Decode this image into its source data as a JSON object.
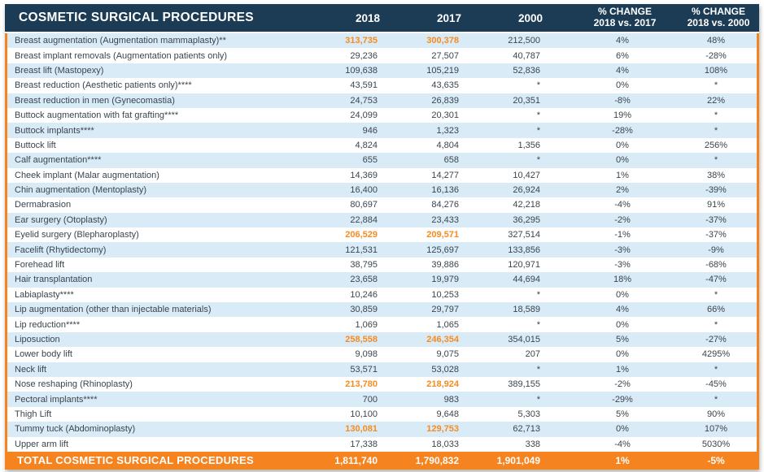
{
  "header": {
    "title": "COSMETIC SURGICAL PROCEDURES",
    "col_2018": "2018",
    "col_2017": "2017",
    "col_2000": "2000",
    "col_pct_2017_line1": "% CHANGE",
    "col_pct_2017_line2": "2018 vs. 2017",
    "col_pct_2000_line1": "% CHANGE",
    "col_pct_2000_line2": "2018 vs. 2000"
  },
  "colors": {
    "navy": "#1C3C55",
    "orange": "#F5831F",
    "orange_text": "#F68B1F",
    "stripe_blue": "#D9EBF7",
    "row_text": "#3A454E"
  },
  "chart_data": {
    "type": "table",
    "title": "COSMETIC SURGICAL PROCEDURES",
    "columns": [
      "Procedure",
      "2018",
      "2017",
      "2000",
      "% CHANGE 2018 vs. 2017",
      "% CHANGE 2018 vs. 2000"
    ],
    "rows": [
      {
        "procedure": "Breast augmentation (Augmentation mammaplasty)**",
        "y2018": "313,735",
        "y2017": "300,378",
        "y2000": "212,500",
        "pct_2017": "4%",
        "pct_2000": "48%",
        "highlight": true
      },
      {
        "procedure": "Breast implant removals (Augmentation patients only)",
        "y2018": "29,236",
        "y2017": "27,507",
        "y2000": "40,787",
        "pct_2017": "6%",
        "pct_2000": "-28%",
        "highlight": false
      },
      {
        "procedure": "Breast lift (Mastopexy)",
        "y2018": "109,638",
        "y2017": "105,219",
        "y2000": "52,836",
        "pct_2017": "4%",
        "pct_2000": "108%",
        "highlight": false
      },
      {
        "procedure": "Breast reduction (Aesthetic patients only)****",
        "y2018": "43,591",
        "y2017": "43,635",
        "y2000": "*",
        "pct_2017": "0%",
        "pct_2000": "*",
        "highlight": false
      },
      {
        "procedure": "Breast reduction in men (Gynecomastia)",
        "y2018": "24,753",
        "y2017": "26,839",
        "y2000": "20,351",
        "pct_2017": "-8%",
        "pct_2000": "22%",
        "highlight": false
      },
      {
        "procedure": "Buttock augmentation with fat grafting****",
        "y2018": "24,099",
        "y2017": "20,301",
        "y2000": "*",
        "pct_2017": "19%",
        "pct_2000": "*",
        "highlight": false
      },
      {
        "procedure": "Buttock implants****",
        "y2018": "946",
        "y2017": "1,323",
        "y2000": "*",
        "pct_2017": "-28%",
        "pct_2000": "*",
        "highlight": false
      },
      {
        "procedure": "Buttock lift",
        "y2018": "4,824",
        "y2017": "4,804",
        "y2000": "1,356",
        "pct_2017": "0%",
        "pct_2000": "256%",
        "highlight": false
      },
      {
        "procedure": "Calf augmentation****",
        "y2018": "655",
        "y2017": "658",
        "y2000": "*",
        "pct_2017": "0%",
        "pct_2000": "*",
        "highlight": false
      },
      {
        "procedure": "Cheek implant (Malar augmentation)",
        "y2018": "14,369",
        "y2017": "14,277",
        "y2000": "10,427",
        "pct_2017": "1%",
        "pct_2000": "38%",
        "highlight": false
      },
      {
        "procedure": "Chin augmentation (Mentoplasty)",
        "y2018": "16,400",
        "y2017": "16,136",
        "y2000": "26,924",
        "pct_2017": "2%",
        "pct_2000": "-39%",
        "highlight": false
      },
      {
        "procedure": "Dermabrasion",
        "y2018": "80,697",
        "y2017": "84,276",
        "y2000": "42,218",
        "pct_2017": "-4%",
        "pct_2000": "91%",
        "highlight": false
      },
      {
        "procedure": "Ear surgery (Otoplasty)",
        "y2018": "22,884",
        "y2017": "23,433",
        "y2000": "36,295",
        "pct_2017": "-2%",
        "pct_2000": "-37%",
        "highlight": false
      },
      {
        "procedure": "Eyelid surgery (Blepharoplasty)",
        "y2018": "206,529",
        "y2017": "209,571",
        "y2000": "327,514",
        "pct_2017": "-1%",
        "pct_2000": "-37%",
        "highlight": true
      },
      {
        "procedure": "Facelift (Rhytidectomy)",
        "y2018": "121,531",
        "y2017": "125,697",
        "y2000": "133,856",
        "pct_2017": "-3%",
        "pct_2000": "-9%",
        "highlight": false
      },
      {
        "procedure": "Forehead lift",
        "y2018": "38,795",
        "y2017": "39,886",
        "y2000": "120,971",
        "pct_2017": "-3%",
        "pct_2000": "-68%",
        "highlight": false
      },
      {
        "procedure": "Hair transplantation",
        "y2018": "23,658",
        "y2017": "19,979",
        "y2000": "44,694",
        "pct_2017": "18%",
        "pct_2000": "-47%",
        "highlight": false
      },
      {
        "procedure": "Labiaplasty****",
        "y2018": "10,246",
        "y2017": "10,253",
        "y2000": "*",
        "pct_2017": "0%",
        "pct_2000": "*",
        "highlight": false
      },
      {
        "procedure": "Lip augmentation (other than injectable materials)",
        "y2018": "30,859",
        "y2017": "29,797",
        "y2000": "18,589",
        "pct_2017": "4%",
        "pct_2000": "66%",
        "highlight": false
      },
      {
        "procedure": "Lip reduction****",
        "y2018": "1,069",
        "y2017": "1,065",
        "y2000": "*",
        "pct_2017": "0%",
        "pct_2000": "*",
        "highlight": false
      },
      {
        "procedure": "Liposuction",
        "y2018": "258,558",
        "y2017": "246,354",
        "y2000": "354,015",
        "pct_2017": "5%",
        "pct_2000": "-27%",
        "highlight": true
      },
      {
        "procedure": "Lower body lift",
        "y2018": "9,098",
        "y2017": "9,075",
        "y2000": "207",
        "pct_2017": "0%",
        "pct_2000": "4295%",
        "highlight": false
      },
      {
        "procedure": "Neck lift",
        "y2018": "53,571",
        "y2017": "53,028",
        "y2000": "*",
        "pct_2017": "1%",
        "pct_2000": "*",
        "highlight": false
      },
      {
        "procedure": "Nose reshaping (Rhinoplasty)",
        "y2018": "213,780",
        "y2017": "218,924",
        "y2000": "389,155",
        "pct_2017": "-2%",
        "pct_2000": "-45%",
        "highlight": true
      },
      {
        "procedure": "Pectoral implants****",
        "y2018": "700",
        "y2017": "983",
        "y2000": "*",
        "pct_2017": "-29%",
        "pct_2000": "*",
        "highlight": false
      },
      {
        "procedure": "Thigh Lift",
        "y2018": "10,100",
        "y2017": "9,648",
        "y2000": "5,303",
        "pct_2017": "5%",
        "pct_2000": "90%",
        "highlight": false
      },
      {
        "procedure": "Tummy tuck (Abdominoplasty)",
        "y2018": "130,081",
        "y2017": "129,753",
        "y2000": "62,713",
        "pct_2017": "0%",
        "pct_2000": "107%",
        "highlight": true
      },
      {
        "procedure": "Upper arm lift",
        "y2018": "17,338",
        "y2017": "18,033",
        "y2000": "338",
        "pct_2017": "-4%",
        "pct_2000": "5030%",
        "highlight": false
      }
    ],
    "total_row": {
      "label": "TOTAL COSMETIC SURGICAL PROCEDURES",
      "y2018": "1,811,740",
      "y2017": "1,790,832",
      "y2000": "1,901,049",
      "pct_2017": "1%",
      "pct_2000": "-5%"
    }
  }
}
